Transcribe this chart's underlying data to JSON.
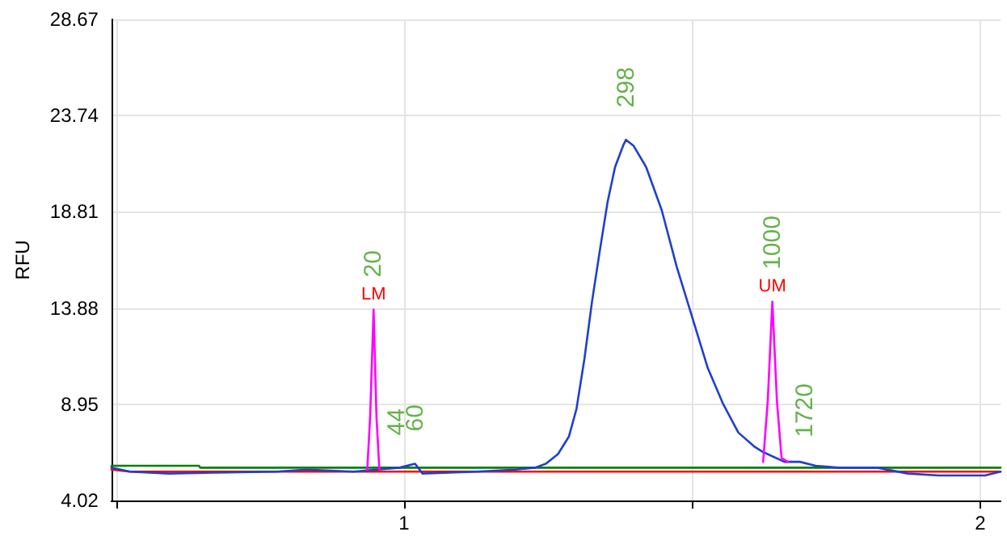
{
  "chart_data": {
    "type": "line",
    "ylabel": "RFU",
    "xlim": [
      0.492,
      2.035
    ],
    "xticks": [
      {
        "value": 0.5,
        "label": null
      },
      1,
      {
        "value": 1.5,
        "label": null
      },
      2
    ],
    "ylim": [
      4.02,
      28.67
    ],
    "yticks": [
      4.02,
      8.95,
      13.88,
      18.81,
      23.74,
      28.67
    ],
    "grid": true,
    "marker": "none",
    "line_style": "solid",
    "series": [
      {
        "color": "#008000",
        "x": [
          0.492,
          0.644,
          0.646,
          2.035
        ],
        "values": [
          5.8,
          5.8,
          5.7,
          5.7
        ]
      },
      {
        "color": "#ff0000",
        "x": [
          0.492,
          0.524,
          2.035
        ],
        "values": [
          5.6,
          5.5,
          5.5
        ]
      },
      {
        "color": "#1f3fd0",
        "x": [
          0.492,
          0.524,
          0.591,
          0.778,
          0.832,
          0.912,
          0.992,
          1.019,
          1.032,
          1.126,
          1.193,
          1.227,
          1.246,
          1.267,
          1.286,
          1.299,
          1.313,
          1.326,
          1.34,
          1.353,
          1.366,
          1.38,
          1.385,
          1.398,
          1.42,
          1.447,
          1.473,
          1.5,
          1.527,
          1.553,
          1.58,
          1.607,
          1.623,
          1.66,
          1.687,
          1.714,
          1.754,
          1.821,
          1.874,
          1.928,
          2.008,
          2.035
        ],
        "values": [
          5.7,
          5.5,
          5.4,
          5.5,
          5.6,
          5.5,
          5.7,
          5.9,
          5.4,
          5.5,
          5.6,
          5.7,
          5.9,
          6.4,
          7.3,
          8.7,
          11.3,
          14.2,
          16.9,
          19.3,
          21.1,
          22.2,
          22.5,
          22.2,
          21.1,
          18.9,
          16.0,
          13.4,
          10.8,
          9.0,
          7.5,
          6.8,
          6.5,
          6.0,
          6.0,
          5.8,
          5.7,
          5.7,
          5.4,
          5.3,
          5.3,
          5.5
        ]
      },
      {
        "color": "#ff00ff",
        "x": [
          0.936,
          0.941,
          0.947,
          0.952,
          0.957,
          1.3,
          1.623,
          1.631,
          1.639,
          1.647,
          1.655,
          1.666
        ],
        "values": [
          5.6,
          8.3,
          13.8,
          8.3,
          5.6,
          null,
          6.0,
          9.1,
          14.2,
          9.1,
          6.2,
          6.0
        ],
        "value_labels": [
          null,
          null,
          "LM",
          null,
          null,
          null,
          null,
          null,
          "UM",
          null,
          null,
          null
        ]
      }
    ],
    "annotations": [
      {
        "text": "20",
        "x": 0.947,
        "y": 13.8
      },
      {
        "text": "44",
        "x": 0.987,
        "y": 5.7
      },
      {
        "text": "60",
        "x": 1.019,
        "y": 5.9
      },
      {
        "text": "298",
        "x": 1.385,
        "y": 22.5
      },
      {
        "text": "1000",
        "x": 1.639,
        "y": 14.2
      },
      {
        "text": "1720",
        "x": 1.695,
        "y": 5.6
      }
    ]
  }
}
